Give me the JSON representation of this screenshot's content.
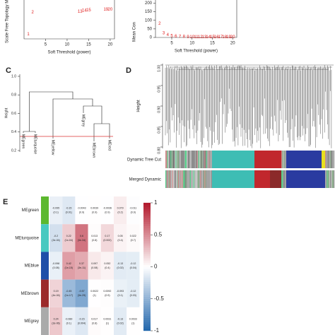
{
  "panels": {
    "a": {
      "type": "scatter",
      "ylabel": "Scale Free Topology M",
      "xlabel": "Soft Threshold (power)",
      "xlim": [
        0,
        21
      ],
      "ylim": [
        0,
        1
      ],
      "xticks": [
        5,
        10,
        15,
        20
      ],
      "points": [
        {
          "label": "1",
          "x": 1,
          "y": 0.12
        },
        {
          "label": "2",
          "x": 2,
          "y": 0.68
        },
        {
          "label": "13",
          "x": 13,
          "y": 0.7
        },
        {
          "label": "14",
          "x": 14,
          "y": 0.73
        },
        {
          "label": "15",
          "x": 15,
          "y": 0.74
        },
        {
          "label": "19",
          "x": 19,
          "y": 0.76
        },
        {
          "label": "20",
          "x": 20,
          "y": 0.76
        }
      ]
    },
    "b": {
      "type": "scatter",
      "ylabel": "Mean Con",
      "xlabel": "Soft Threshold (power)",
      "xlim": [
        1,
        21
      ],
      "ylim": [
        0,
        210
      ],
      "xticks": [
        5,
        10,
        15,
        20
      ],
      "yticks": [
        0,
        50,
        100,
        150,
        200
      ],
      "points": [
        {
          "label": "2",
          "x": 2,
          "y": 80
        },
        {
          "label": "3",
          "x": 3,
          "y": 25
        },
        {
          "label": "4",
          "x": 4,
          "y": 14
        },
        {
          "label": "5",
          "x": 5,
          "y": 9
        },
        {
          "label": "6",
          "x": 6,
          "y": 6
        },
        {
          "label": "7",
          "x": 7,
          "y": 5
        },
        {
          "label": "8",
          "x": 8,
          "y": 4
        },
        {
          "label": "9",
          "x": 9,
          "y": 3
        },
        {
          "label": "10",
          "x": 10,
          "y": 3
        },
        {
          "label": "11",
          "x": 11,
          "y": 3
        },
        {
          "label": "12",
          "x": 12,
          "y": 3
        },
        {
          "label": "13",
          "x": 13,
          "y": 3
        },
        {
          "label": "14",
          "x": 14,
          "y": 3
        },
        {
          "label": "15",
          "x": 15,
          "y": 3
        },
        {
          "label": "16",
          "x": 16,
          "y": 3
        },
        {
          "label": "17",
          "x": 17,
          "y": 3
        },
        {
          "label": "18",
          "x": 18,
          "y": 3
        },
        {
          "label": "19",
          "x": 19,
          "y": 3
        },
        {
          "label": "20",
          "x": 20,
          "y": 3
        }
      ]
    },
    "c": {
      "label": "C",
      "ylabel": "Height",
      "ylim": [
        0.2,
        1
      ],
      "yticks": [
        0.2,
        0.4,
        0.6,
        0.8,
        {
          "value": 1,
          "label": "1.0"
        }
      ],
      "leaves": [
        "MEgreen",
        "MEturquoise",
        "MEyellow",
        "MEgrey",
        "MEbrown",
        "MEred"
      ]
    },
    "d": {
      "label": "D",
      "ylabel": "Height",
      "ylim": [
        0.8,
        1
      ],
      "yticks": [
        {
          "value": 0.8,
          "label": "0.80"
        },
        0.85,
        {
          "value": 0.9,
          "label": "0.90"
        },
        0.95,
        {
          "value": 1,
          "label": "1.00"
        }
      ],
      "bars": [
        "Dynamic Tree Cut",
        "Merged Dynamic"
      ]
    },
    "e": {
      "label": "E",
      "scale": [
        -1,
        1
      ],
      "scale_ticks": [
        1,
        0.5,
        0,
        -0.5,
        -1
      ],
      "rows": [
        {
          "name": "MEgreen",
          "cells": [
            {
              "r": -0.095,
              "p": "(0.1)"
            },
            {
              "r": -0.15,
              "p": "(0.01)"
            },
            {
              "r": -0.0043,
              "p": "(0.9)"
            },
            {
              "r": 0.0039,
              "p": "(0.9)"
            },
            {
              "r": -0.0036,
              "p": "(0.9)"
            },
            {
              "r": 0.079,
              "p": "(0.2)"
            },
            {
              "r": -0.011,
              "p": "(0.9)"
            }
          ]
        },
        {
          "name": "MEturquoise",
          "cells": [
            {
              "r": -0.2,
              "p": "(3e-04)"
            },
            {
              "r": 0.22,
              "p": "(1e-04)"
            },
            {
              "r": 0.6,
              "p": "(3e-34)"
            },
            {
              "r": 0.013,
              "p": "(0.8)"
            },
            {
              "r": 0.17,
              "p": "(0.002)"
            },
            {
              "r": 0.05,
              "p": "(0.4)"
            },
            {
              "r": 0.022,
              "p": "(0.7)"
            }
          ]
        },
        {
          "name": "MEblue",
          "cells": [
            {
              "r": -0.098,
              "p": "(0.08)"
            },
            {
              "r": 0.42,
              "p": "(1e-15)"
            },
            {
              "r": 0.37,
              "p": "(3e-11)"
            },
            {
              "r": 0.097,
              "p": "(0.08)"
            },
            {
              "r": 0.052,
              "p": "(0.4)"
            },
            {
              "r": -0.13,
              "p": "(0.02)"
            },
            {
              "r": -0.12,
              "p": "(0.04)"
            }
          ]
        },
        {
          "name": "MEbrown",
          "cells": [
            {
              "r": 0.19,
              "p": "(4e-04)"
            },
            {
              "r": -0.45,
              "p": "(1e-17)"
            },
            {
              "r": -0.57,
              "p": "(3e-29)"
            },
            {
              "r": 0.0022,
              "p": "(1)"
            },
            {
              "r": 0.0092,
              "p": "(0.9)"
            },
            {
              "r": -0.093,
              "p": "(0.1)"
            },
            {
              "r": -0.12,
              "p": "(0.03)"
            }
          ]
        },
        {
          "name": "MEgrey",
          "cells": [
            {
              "r": 0.24,
              "p": "(3e-06)"
            },
            {
              "r": -0.089,
              "p": "(0.1)"
            },
            {
              "r": -0.15,
              "p": "(0.004)"
            },
            {
              "r": 0.017,
              "p": "(0.8)"
            },
            {
              "r": 0.0031,
              "p": "(1)"
            },
            {
              "r": -0.13,
              "p": "(0.02)"
            },
            {
              "r": 0.0033,
              "p": "(1)"
            }
          ]
        }
      ]
    }
  }
}
